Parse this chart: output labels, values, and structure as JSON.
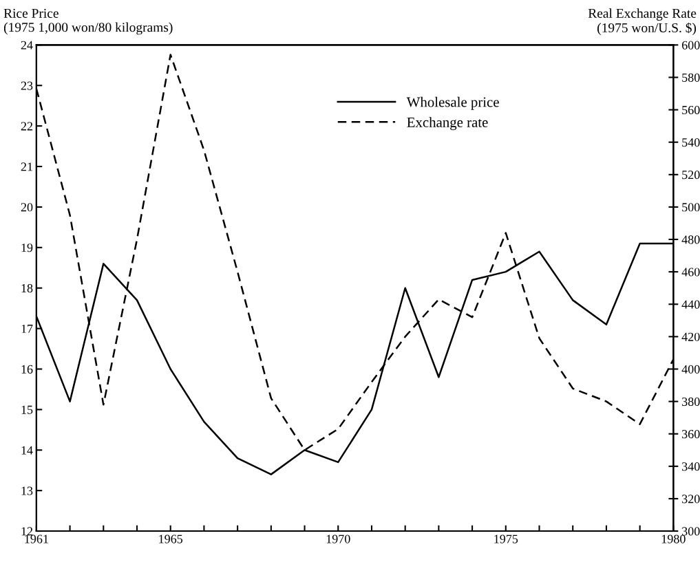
{
  "chart_data": {
    "type": "line",
    "ylabel": "Rice Price\n(1975 1,000 won/80 kilograms)",
    "y2label": "Real Exchange Rate\n(1975 won/U.S. $)",
    "x": [
      1961,
      1962,
      1963,
      1964,
      1965,
      1966,
      1967,
      1968,
      1969,
      1970,
      1971,
      1972,
      1973,
      1974,
      1975,
      1976,
      1977,
      1978,
      1979,
      1980
    ],
    "series": [
      {
        "name": "Wholesale price",
        "color": "#000000",
        "line_style": "solid",
        "values": [
          17.3,
          15.2,
          18.6,
          17.7,
          16.0,
          14.7,
          13.8,
          13.4,
          14.0,
          13.7,
          15.0,
          18.0,
          15.8,
          18.2,
          18.4,
          18.9,
          17.7,
          17.1,
          19.1,
          19.1
        ]
      },
      {
        "name": "Exchange rate",
        "color": "#000000",
        "line_style": "dashed",
        "axis": "y2",
        "values": [
          573,
          495,
          378,
          480,
          594,
          535,
          460,
          382,
          350,
          363,
          392,
          420,
          443,
          432,
          484,
          419,
          388,
          380,
          366,
          406
        ]
      }
    ],
    "xlim": [
      1961,
      1980
    ],
    "xticks": [
      1961,
      {
        "value": 1962,
        "label": null
      },
      {
        "value": 1963,
        "label": null
      },
      {
        "value": 1964,
        "label": null
      },
      1965,
      {
        "value": 1966,
        "label": null
      },
      {
        "value": 1967,
        "label": null
      },
      {
        "value": 1968,
        "label": null
      },
      {
        "value": 1969,
        "label": null
      },
      1970,
      {
        "value": 1971,
        "label": null
      },
      {
        "value": 1972,
        "label": null
      },
      {
        "value": 1973,
        "label": null
      },
      {
        "value": 1974,
        "label": null
      },
      1975,
      {
        "value": 1976,
        "label": null
      },
      {
        "value": 1977,
        "label": null
      },
      {
        "value": 1978,
        "label": null
      },
      {
        "value": 1979,
        "label": null
      },
      1980
    ],
    "ylim": [
      12,
      24
    ],
    "yticks": [
      12,
      13,
      14,
      15,
      16,
      17,
      18,
      19,
      20,
      21,
      22,
      23,
      24
    ],
    "y2lim": [
      300,
      600
    ],
    "y2ticks": [
      300,
      320,
      340,
      360,
      380,
      400,
      420,
      440,
      460,
      480,
      500,
      520,
      540,
      560,
      580,
      600
    ],
    "grid": false,
    "legend": "top",
    "marker": "none"
  }
}
